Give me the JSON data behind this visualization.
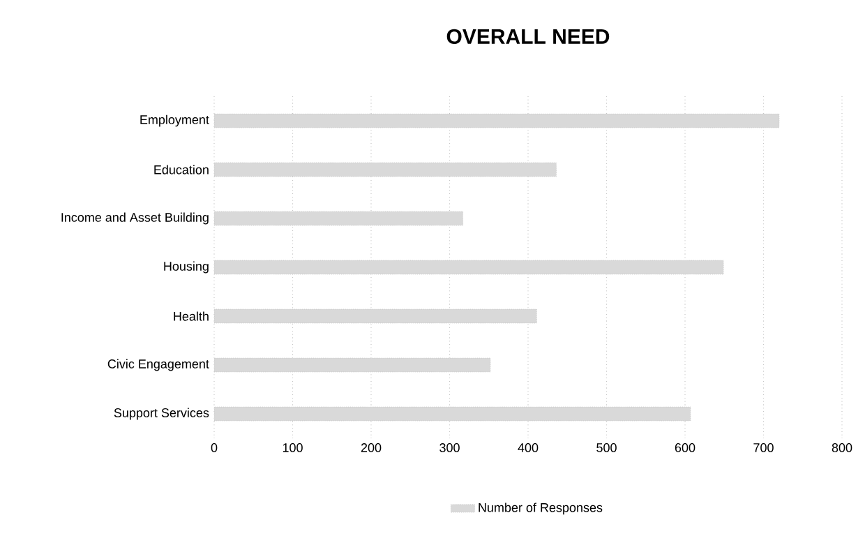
{
  "chart_data": {
    "type": "bar",
    "orientation": "horizontal",
    "title": "OVERALL NEED",
    "categories": [
      "Employment",
      "Education",
      "Income and Asset Building",
      "Housing",
      "Health",
      "Civic Engagement",
      "Support Services"
    ],
    "series": [
      {
        "name": "Number of Responses",
        "color": "#d9d9d9",
        "values": [
          720,
          436,
          317,
          649,
          411,
          352,
          607
        ]
      }
    ],
    "xlim": [
      0,
      800
    ],
    "xticks": [
      0,
      100,
      200,
      300,
      400,
      500,
      600,
      700,
      800
    ],
    "grid": "x",
    "legend": "bottom"
  }
}
